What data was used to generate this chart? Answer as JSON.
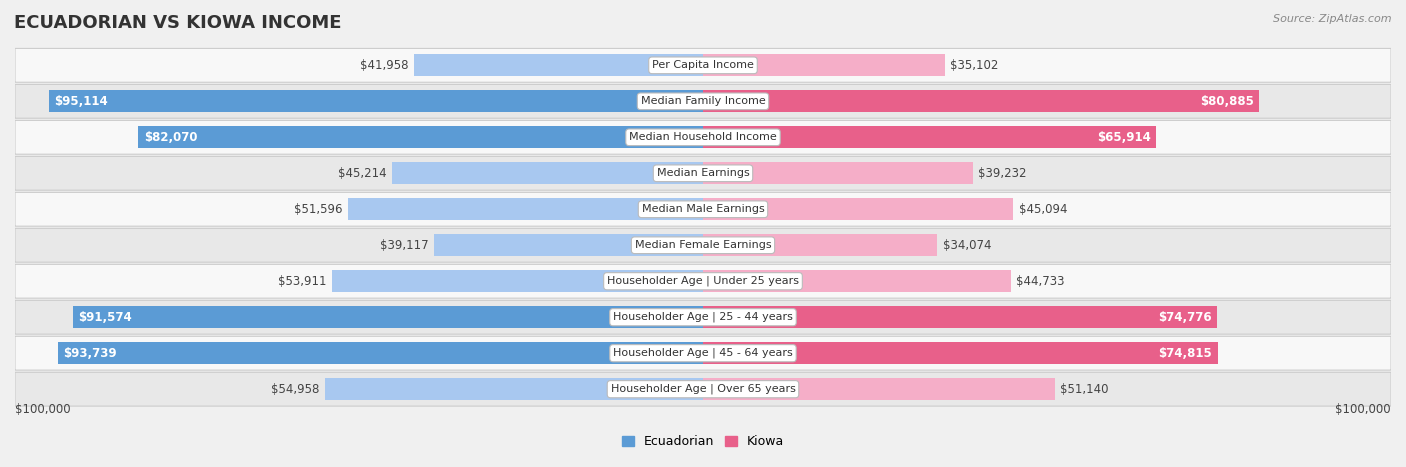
{
  "title": "ECUADORIAN VS KIOWA INCOME",
  "source": "Source: ZipAtlas.com",
  "categories": [
    "Per Capita Income",
    "Median Family Income",
    "Median Household Income",
    "Median Earnings",
    "Median Male Earnings",
    "Median Female Earnings",
    "Householder Age | Under 25 years",
    "Householder Age | 25 - 44 years",
    "Householder Age | 45 - 64 years",
    "Householder Age | Over 65 years"
  ],
  "ecuadorian_values": [
    41958,
    95114,
    82070,
    45214,
    51596,
    39117,
    53911,
    91574,
    93739,
    54958
  ],
  "kiowa_values": [
    35102,
    80885,
    65914,
    39232,
    45094,
    34074,
    44733,
    74776,
    74815,
    51140
  ],
  "ecuadorian_labels": [
    "$41,958",
    "$95,114",
    "$82,070",
    "$45,214",
    "$51,596",
    "$39,117",
    "$53,911",
    "$91,574",
    "$93,739",
    "$54,958"
  ],
  "kiowa_labels": [
    "$35,102",
    "$80,885",
    "$65,914",
    "$39,232",
    "$45,094",
    "$34,074",
    "$44,733",
    "$74,776",
    "$74,815",
    "$51,140"
  ],
  "max_value": 100000,
  "color_ecuadorian_light": "#a8c8f0",
  "color_ecuadorian_dark": "#5b9bd5",
  "color_kiowa_light": "#f5aec8",
  "color_kiowa_dark": "#e8608a",
  "ecu_dark_threshold": 75000,
  "kio_dark_threshold": 65000,
  "bg_color": "#f0f0f0",
  "row_bg_light": "#f8f8f8",
  "row_bg_dark": "#e8e8e8",
  "row_border": "#cccccc",
  "legend_ecuadorian": "Ecuadorian",
  "legend_kiowa": "Kiowa",
  "xlabel_left": "$100,000",
  "xlabel_right": "$100,000",
  "title_fontsize": 13,
  "label_fontsize": 8.5,
  "cat_fontsize": 8,
  "source_fontsize": 8
}
